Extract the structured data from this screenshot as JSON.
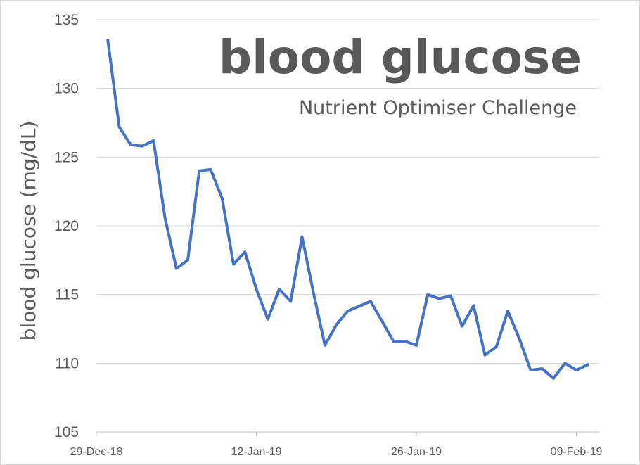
{
  "chart_data": {
    "type": "line",
    "title": "blood glucose",
    "subtitle": "Nutrient Optimiser Challenge",
    "xlabel": "",
    "ylabel": "blood glucose (mg/dL)",
    "ylim": [
      105,
      135
    ],
    "yticks": [
      "105",
      "110",
      "115",
      "120",
      "125",
      "130",
      "135"
    ],
    "xlim": [
      "2018-12-29",
      "2019-02-11"
    ],
    "xticks": [
      {
        "date": "2018-12-29",
        "label": "29-Dec-18"
      },
      {
        "date": "2019-01-12",
        "label": "12-Jan-19"
      },
      {
        "date": "2019-01-26",
        "label": "26-Jan-19"
      },
      {
        "date": "2019-02-09",
        "label": "09-Feb-19"
      }
    ],
    "grid": "horizontal",
    "legend": "none",
    "series_color": "#4472C4",
    "series": [
      {
        "x": [
          "2018-12-30",
          "2018-12-31",
          "2019-01-01",
          "2019-01-02",
          "2019-01-03",
          "2019-01-04",
          "2019-01-05",
          "2019-01-06",
          "2019-01-07",
          "2019-01-08",
          "2019-01-09",
          "2019-01-10",
          "2019-01-11",
          "2019-01-12",
          "2019-01-13",
          "2019-01-14",
          "2019-01-15",
          "2019-01-16",
          "2019-01-17",
          "2019-01-18",
          "2019-01-19",
          "2019-01-20",
          "2019-01-22",
          "2019-01-24",
          "2019-01-25",
          "2019-01-26",
          "2019-01-27",
          "2019-01-28",
          "2019-01-29",
          "2019-01-30",
          "2019-01-31",
          "2019-02-01",
          "2019-02-02",
          "2019-02-03",
          "2019-02-04",
          "2019-02-05",
          "2019-02-06",
          "2019-02-07",
          "2019-02-08",
          "2019-02-09",
          "2019-02-10"
        ],
        "values": [
          133.5,
          127.2,
          125.9,
          125.8,
          126.2,
          120.6,
          116.9,
          117.5,
          124.0,
          124.1,
          122.0,
          117.2,
          118.1,
          115.4,
          113.2,
          115.4,
          114.5,
          119.2,
          115.1,
          111.3,
          112.8,
          113.8,
          114.5,
          111.6,
          111.6,
          111.3,
          115.0,
          114.7,
          114.9,
          112.7,
          114.2,
          110.6,
          111.2,
          113.8,
          111.8,
          109.5,
          109.6,
          108.9,
          110.0,
          109.5,
          109.9
        ]
      }
    ]
  }
}
